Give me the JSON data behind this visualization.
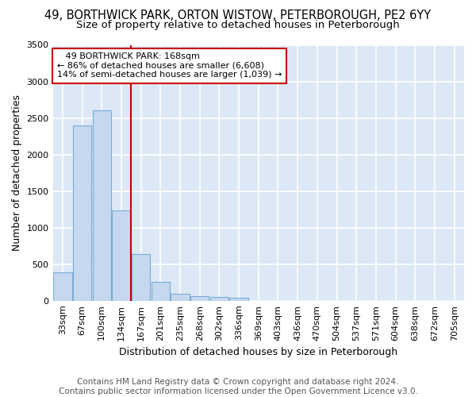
{
  "title_line1": "49, BORTHWICK PARK, ORTON WISTOW, PETERBOROUGH, PE2 6YY",
  "title_line2": "Size of property relative to detached houses in Peterborough",
  "xlabel": "Distribution of detached houses by size in Peterborough",
  "ylabel": "Number of detached properties",
  "categories": [
    "33sqm",
    "67sqm",
    "100sqm",
    "134sqm",
    "167sqm",
    "201sqm",
    "235sqm",
    "268sqm",
    "302sqm",
    "336sqm",
    "369sqm",
    "403sqm",
    "436sqm",
    "470sqm",
    "504sqm",
    "537sqm",
    "571sqm",
    "604sqm",
    "638sqm",
    "672sqm",
    "705sqm"
  ],
  "values": [
    390,
    2400,
    2600,
    1240,
    640,
    255,
    95,
    60,
    55,
    40,
    0,
    0,
    0,
    0,
    0,
    0,
    0,
    0,
    0,
    0,
    0
  ],
  "bar_color": "#c5d8f0",
  "bar_edge_color": "#7aadd4",
  "annotation_line1": "49 BORTHWICK PARK: 168sqm",
  "annotation_line2": "← 86% of detached houses are smaller (6,608)",
  "annotation_line3": "14% of semi-detached houses are larger (1,039) →",
  "annotation_box_color": "#ffffff",
  "annotation_border_color": "#cc0000",
  "vline_color": "#cc0000",
  "vline_x_index": 4,
  "ylim": [
    0,
    3500
  ],
  "yticks": [
    0,
    500,
    1000,
    1500,
    2000,
    2500,
    3000,
    3500
  ],
  "footer_line1": "Contains HM Land Registry data © Crown copyright and database right 2024.",
  "footer_line2": "Contains public sector information licensed under the Open Government Licence v3.0.",
  "fig_bg_color": "#ffffff",
  "plot_bg_color": "#dce8f5",
  "grid_color": "#ffffff",
  "title_fontsize": 10.5,
  "subtitle_fontsize": 9.5,
  "axis_label_fontsize": 9,
  "tick_fontsize": 8,
  "annotation_fontsize": 8,
  "footer_fontsize": 7.5
}
